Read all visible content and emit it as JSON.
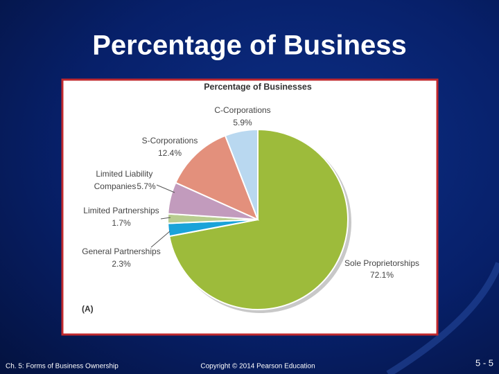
{
  "slide": {
    "title": "Percentage of Business",
    "footer_left": "Ch. 5: Forms of Business Ownership",
    "footer_center": "Copyright © 2014 Pearson Education",
    "page_number": "5 - 5"
  },
  "chart_data": {
    "type": "pie",
    "title": "Percentage of Businesses",
    "panel_label": "(A)",
    "categories": [
      "Sole Proprietorships",
      "General Partnerships",
      "Limited Partnerships",
      "Limited Liability Companies",
      "S-Corporations",
      "C-Corporations"
    ],
    "values": [
      72.1,
      2.3,
      1.7,
      5.7,
      12.4,
      5.9
    ],
    "value_labels": [
      "72.1%",
      "2.3%",
      "1.7%",
      "5.7%",
      "12.4%",
      "5.9%"
    ],
    "colors": [
      "#9dbb3b",
      "#1aa3d9",
      "#b8cc8f",
      "#c29bbd",
      "#e3907c",
      "#b9d8f0"
    ]
  }
}
